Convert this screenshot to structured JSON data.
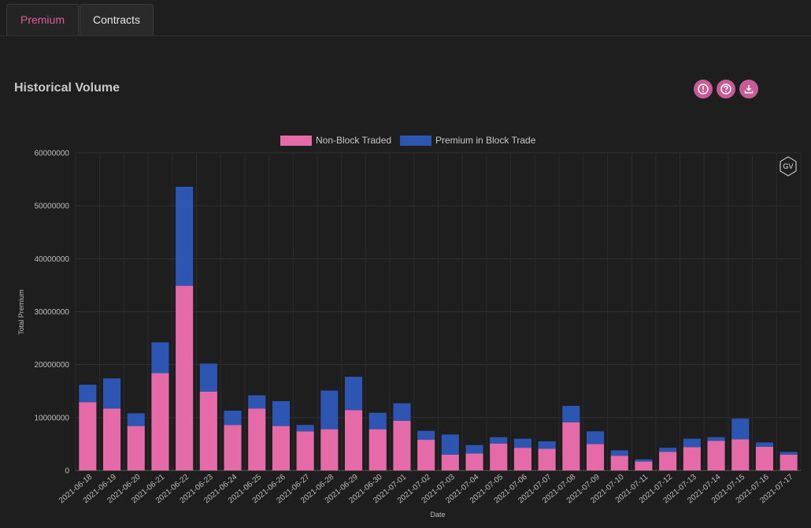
{
  "tabs": [
    {
      "label": "Premium",
      "active": true
    },
    {
      "label": "Contracts",
      "active": false
    }
  ],
  "panel": {
    "title": "Historical Volume",
    "icons": [
      "alert-icon",
      "help-icon",
      "download-icon"
    ],
    "badge": "GV"
  },
  "colors": {
    "accent": "#e05a9a",
    "non_block": "#e56aa8",
    "block": "#2d55b2",
    "background": "#1e1e1e"
  },
  "chart_data": {
    "type": "bar",
    "stacked": true,
    "xlabel": "Date",
    "ylabel": "Total Premium",
    "ylim": [
      0,
      60000000
    ],
    "yticks": [
      0,
      10000000,
      20000000,
      30000000,
      40000000,
      50000000,
      60000000
    ],
    "legend_position": "top-center",
    "grid": true,
    "categories": [
      "2021-06-18",
      "2021-06-19",
      "2021-06-20",
      "2021-06-21",
      "2021-06-22",
      "2021-06-23",
      "2021-06-24",
      "2021-06-25",
      "2021-06-26",
      "2021-06-27",
      "2021-06-28",
      "2021-06-29",
      "2021-06-30",
      "2021-07-01",
      "2021-07-02",
      "2021-07-03",
      "2021-07-04",
      "2021-07-05",
      "2021-07-06",
      "2021-07-07",
      "2021-07-08",
      "2021-07-09",
      "2021-07-10",
      "2021-07-11",
      "2021-07-12",
      "2021-07-13",
      "2021-07-14",
      "2021-07-15",
      "2021-07-16",
      "2021-07-17"
    ],
    "series": [
      {
        "name": "Non-Block Traded",
        "color": "#e56aa8",
        "values": [
          12900000,
          11700000,
          8400000,
          18400000,
          34900000,
          14900000,
          8600000,
          11700000,
          8400000,
          7400000,
          7800000,
          11400000,
          7800000,
          9400000,
          5800000,
          3000000,
          3200000,
          5100000,
          4300000,
          4100000,
          9100000,
          5000000,
          2800000,
          1700000,
          3500000,
          4400000,
          5600000,
          5900000,
          4500000,
          3000000
        ]
      },
      {
        "name": "Premium in Block Trade",
        "color": "#2d55b2",
        "values": [
          3300000,
          5700000,
          2400000,
          5800000,
          18700000,
          5300000,
          2700000,
          2500000,
          4700000,
          1200000,
          7300000,
          6300000,
          3100000,
          3300000,
          1700000,
          3800000,
          1600000,
          1200000,
          1700000,
          1400000,
          3100000,
          2400000,
          1000000,
          400000,
          800000,
          1600000,
          700000,
          3900000,
          800000,
          500000
        ]
      }
    ]
  }
}
